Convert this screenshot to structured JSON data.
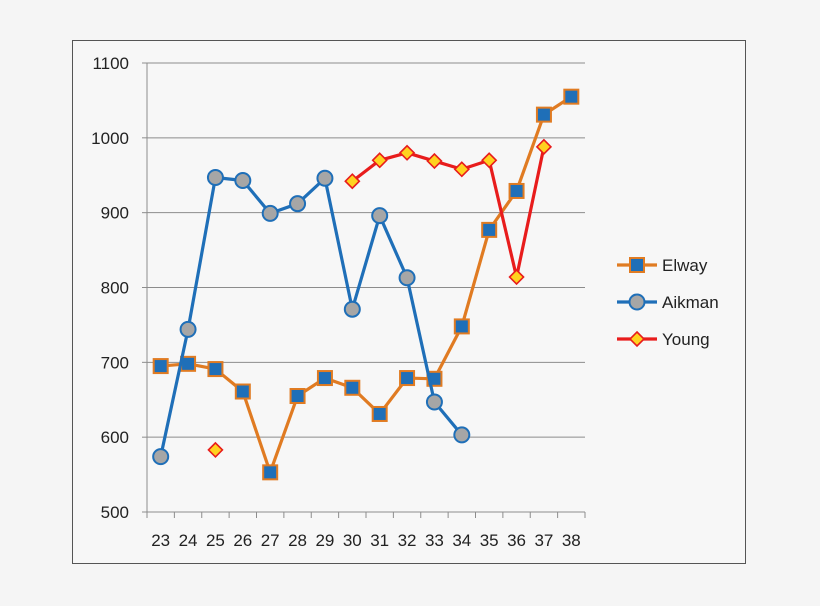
{
  "chart_data": {
    "type": "line",
    "categories": [
      "23",
      "24",
      "25",
      "26",
      "27",
      "28",
      "29",
      "30",
      "31",
      "32",
      "33",
      "34",
      "35",
      "36",
      "37",
      "38"
    ],
    "ylim": [
      500,
      1100
    ],
    "yticks": [
      500,
      600,
      700,
      800,
      900,
      1000,
      1100
    ],
    "grid": true,
    "legend_position": "right",
    "series": [
      {
        "name": "Elway",
        "color": "#e07b22",
        "marker": "square",
        "marker_color": "#1f6fb8",
        "values": [
          695,
          698,
          691,
          661,
          553,
          655,
          679,
          666,
          631,
          679,
          678,
          748,
          877,
          929,
          1031,
          1055
        ]
      },
      {
        "name": "Aikman",
        "color": "#1f6fb8",
        "marker": "circle",
        "marker_color": "#a6a6a6",
        "values": [
          574,
          744,
          947,
          943,
          899,
          912,
          946,
          771,
          896,
          813,
          647,
          603,
          null,
          null,
          null,
          null
        ]
      },
      {
        "name": "Young",
        "color": "#e81c1c",
        "marker": "diamond",
        "marker_color": "#ffd21f",
        "values": [
          null,
          null,
          583,
          null,
          null,
          null,
          null,
          942,
          970,
          980,
          969,
          958,
          970,
          814,
          988,
          null
        ]
      }
    ]
  }
}
